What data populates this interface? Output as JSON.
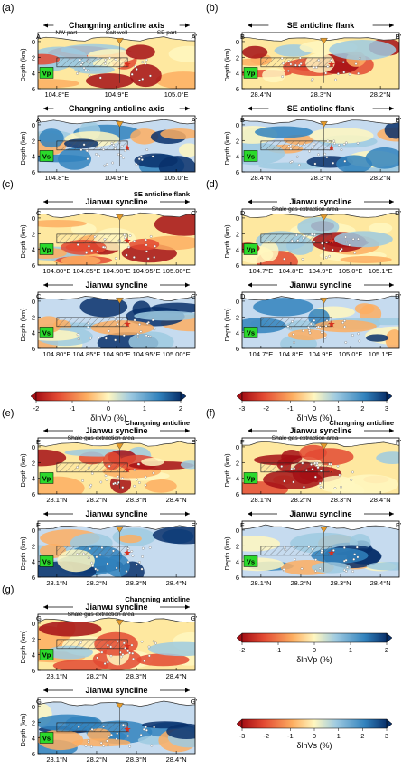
{
  "panels": [
    {
      "id": "a",
      "label": "(a)",
      "start": "A",
      "end": "A'",
      "header": "Changning anticline axis",
      "subs": [
        "NW part",
        "Salt well",
        "SE part"
      ],
      "ylabel": "Depth (km)",
      "yticks": [
        "0",
        "2",
        "4",
        "6"
      ],
      "xticks": [
        "104.8°E",
        "104.9°E",
        "105.0°E"
      ],
      "map_top": {
        "tag": "Vp"
      },
      "map_bottom": {
        "tag": "Vs",
        "header": "Changning anticline axis",
        "subs": [
          "NW part",
          "Salt well",
          "SE part"
        ]
      }
    },
    {
      "id": "b",
      "label": "(b)",
      "start": "B",
      "end": "B'",
      "header": "SE anticline flank",
      "subs": [],
      "ylabel": "Depth (km)",
      "yticks": [
        "0",
        "2",
        "4",
        "6"
      ],
      "xticks": [
        "28.4°N",
        "28.3°N",
        "28.2°N"
      ],
      "map_top": {
        "tag": "Vp"
      },
      "map_bottom": {
        "tag": "Vs",
        "header": "SE anticline flank"
      }
    },
    {
      "id": "c",
      "label": "(c)",
      "start": "C",
      "end": "C'",
      "header": "Jianwu syncline",
      "header2": "SE anticline flank",
      "ylabel": "Depth (km)",
      "yticks": [
        "0",
        "2",
        "4",
        "6"
      ],
      "xticks": [
        "104.80°E",
        "104.85°E",
        "104.90°E",
        "104.95°E",
        "105.00°E"
      ],
      "map_top": {
        "tag": "Vp"
      },
      "map_bottom": {
        "tag": "Vs"
      }
    },
    {
      "id": "d",
      "label": "(d)",
      "start": "D",
      "end": "D'",
      "header": "Jianwu syncline",
      "sub": "Shale gas extraction area",
      "ylabel": "Depth (km)",
      "yticks": [
        "0",
        "2",
        "4",
        "6"
      ],
      "xticks": [
        "104.7°E",
        "104.8°E",
        "104.9°E",
        "105.0°E",
        "105.1°E"
      ],
      "map_top": {
        "tag": "Vp"
      },
      "map_bottom": {
        "tag": "Vs"
      }
    },
    {
      "id": "e",
      "label": "(e)",
      "start": "E",
      "end": "E'",
      "header": "Jianwu syncline",
      "sub": "Shale gas extraction area",
      "header2": "Changning anticline",
      "ylabel": "Depth (km)",
      "yticks": [
        "0",
        "2",
        "4",
        "6"
      ],
      "xticks": [
        "28.1°N",
        "28.2°N",
        "28.3°N",
        "28.4°N"
      ],
      "map_top": {
        "tag": "Vp"
      },
      "map_bottom": {
        "tag": "Vs"
      }
    },
    {
      "id": "f",
      "label": "(f)",
      "start": "F",
      "end": "F'",
      "header": "Jianwu syncline",
      "sub": "Shale gas extraction area",
      "header2": "Changning anticline",
      "ylabel": "Depth (km)",
      "yticks": [
        "0",
        "2",
        "4",
        "6"
      ],
      "xticks": [
        "28.1°N",
        "28.2°N",
        "28.3°N",
        "28.4°N"
      ],
      "map_top": {
        "tag": "Vp"
      },
      "map_bottom": {
        "tag": "Vs"
      }
    },
    {
      "id": "g",
      "label": "(g)",
      "start": "G",
      "end": "G'",
      "header": "Jianwu syncline",
      "sub": "Shale gas extraction area",
      "header2": "Changning anticline",
      "ylabel": "Depth (km)",
      "yticks": [
        "0",
        "2",
        "4",
        "6"
      ],
      "xticks": [
        "28.1°N",
        "28.2°N",
        "28.3°N",
        "28.4°N"
      ],
      "map_top": {
        "tag": "Vp"
      },
      "map_bottom": {
        "tag": "Vs"
      }
    }
  ],
  "colorbars": [
    {
      "id": "cb-vp-1",
      "label": "δlnVp (%)",
      "ticks": [
        "-2",
        "-1",
        "0",
        "1",
        "2"
      ],
      "range": [
        -2,
        2
      ]
    },
    {
      "id": "cb-vs-1",
      "label": "δlnVs (%)",
      "ticks": [
        "-3",
        "-2",
        "-1",
        "0",
        "1",
        "2",
        "3"
      ],
      "range": [
        -3,
        3
      ]
    },
    {
      "id": "cb-vp-2",
      "label": "δlnVp (%)",
      "ticks": [
        "-2",
        "-1",
        "0",
        "1",
        "2"
      ],
      "range": [
        -2,
        2
      ]
    },
    {
      "id": "cb-vs-2",
      "label": "δlnVs (%)",
      "ticks": [
        "-3",
        "-2",
        "-1",
        "0",
        "1",
        "2",
        "3"
      ],
      "range": [
        -3,
        3
      ]
    }
  ],
  "colors": {
    "strong_low": "#a50f15",
    "low": "#e34a33",
    "mid_low": "#fdae61",
    "neutral": "#fff7c0",
    "mid_high": "#9ecae1",
    "high": "#3182bd",
    "strong_high": "#08306b",
    "tag_green": "#2bd92b",
    "triangle_yellow": "#f5e23a",
    "well_orange": "#e69b2a",
    "star_red": "#d7301f"
  }
}
